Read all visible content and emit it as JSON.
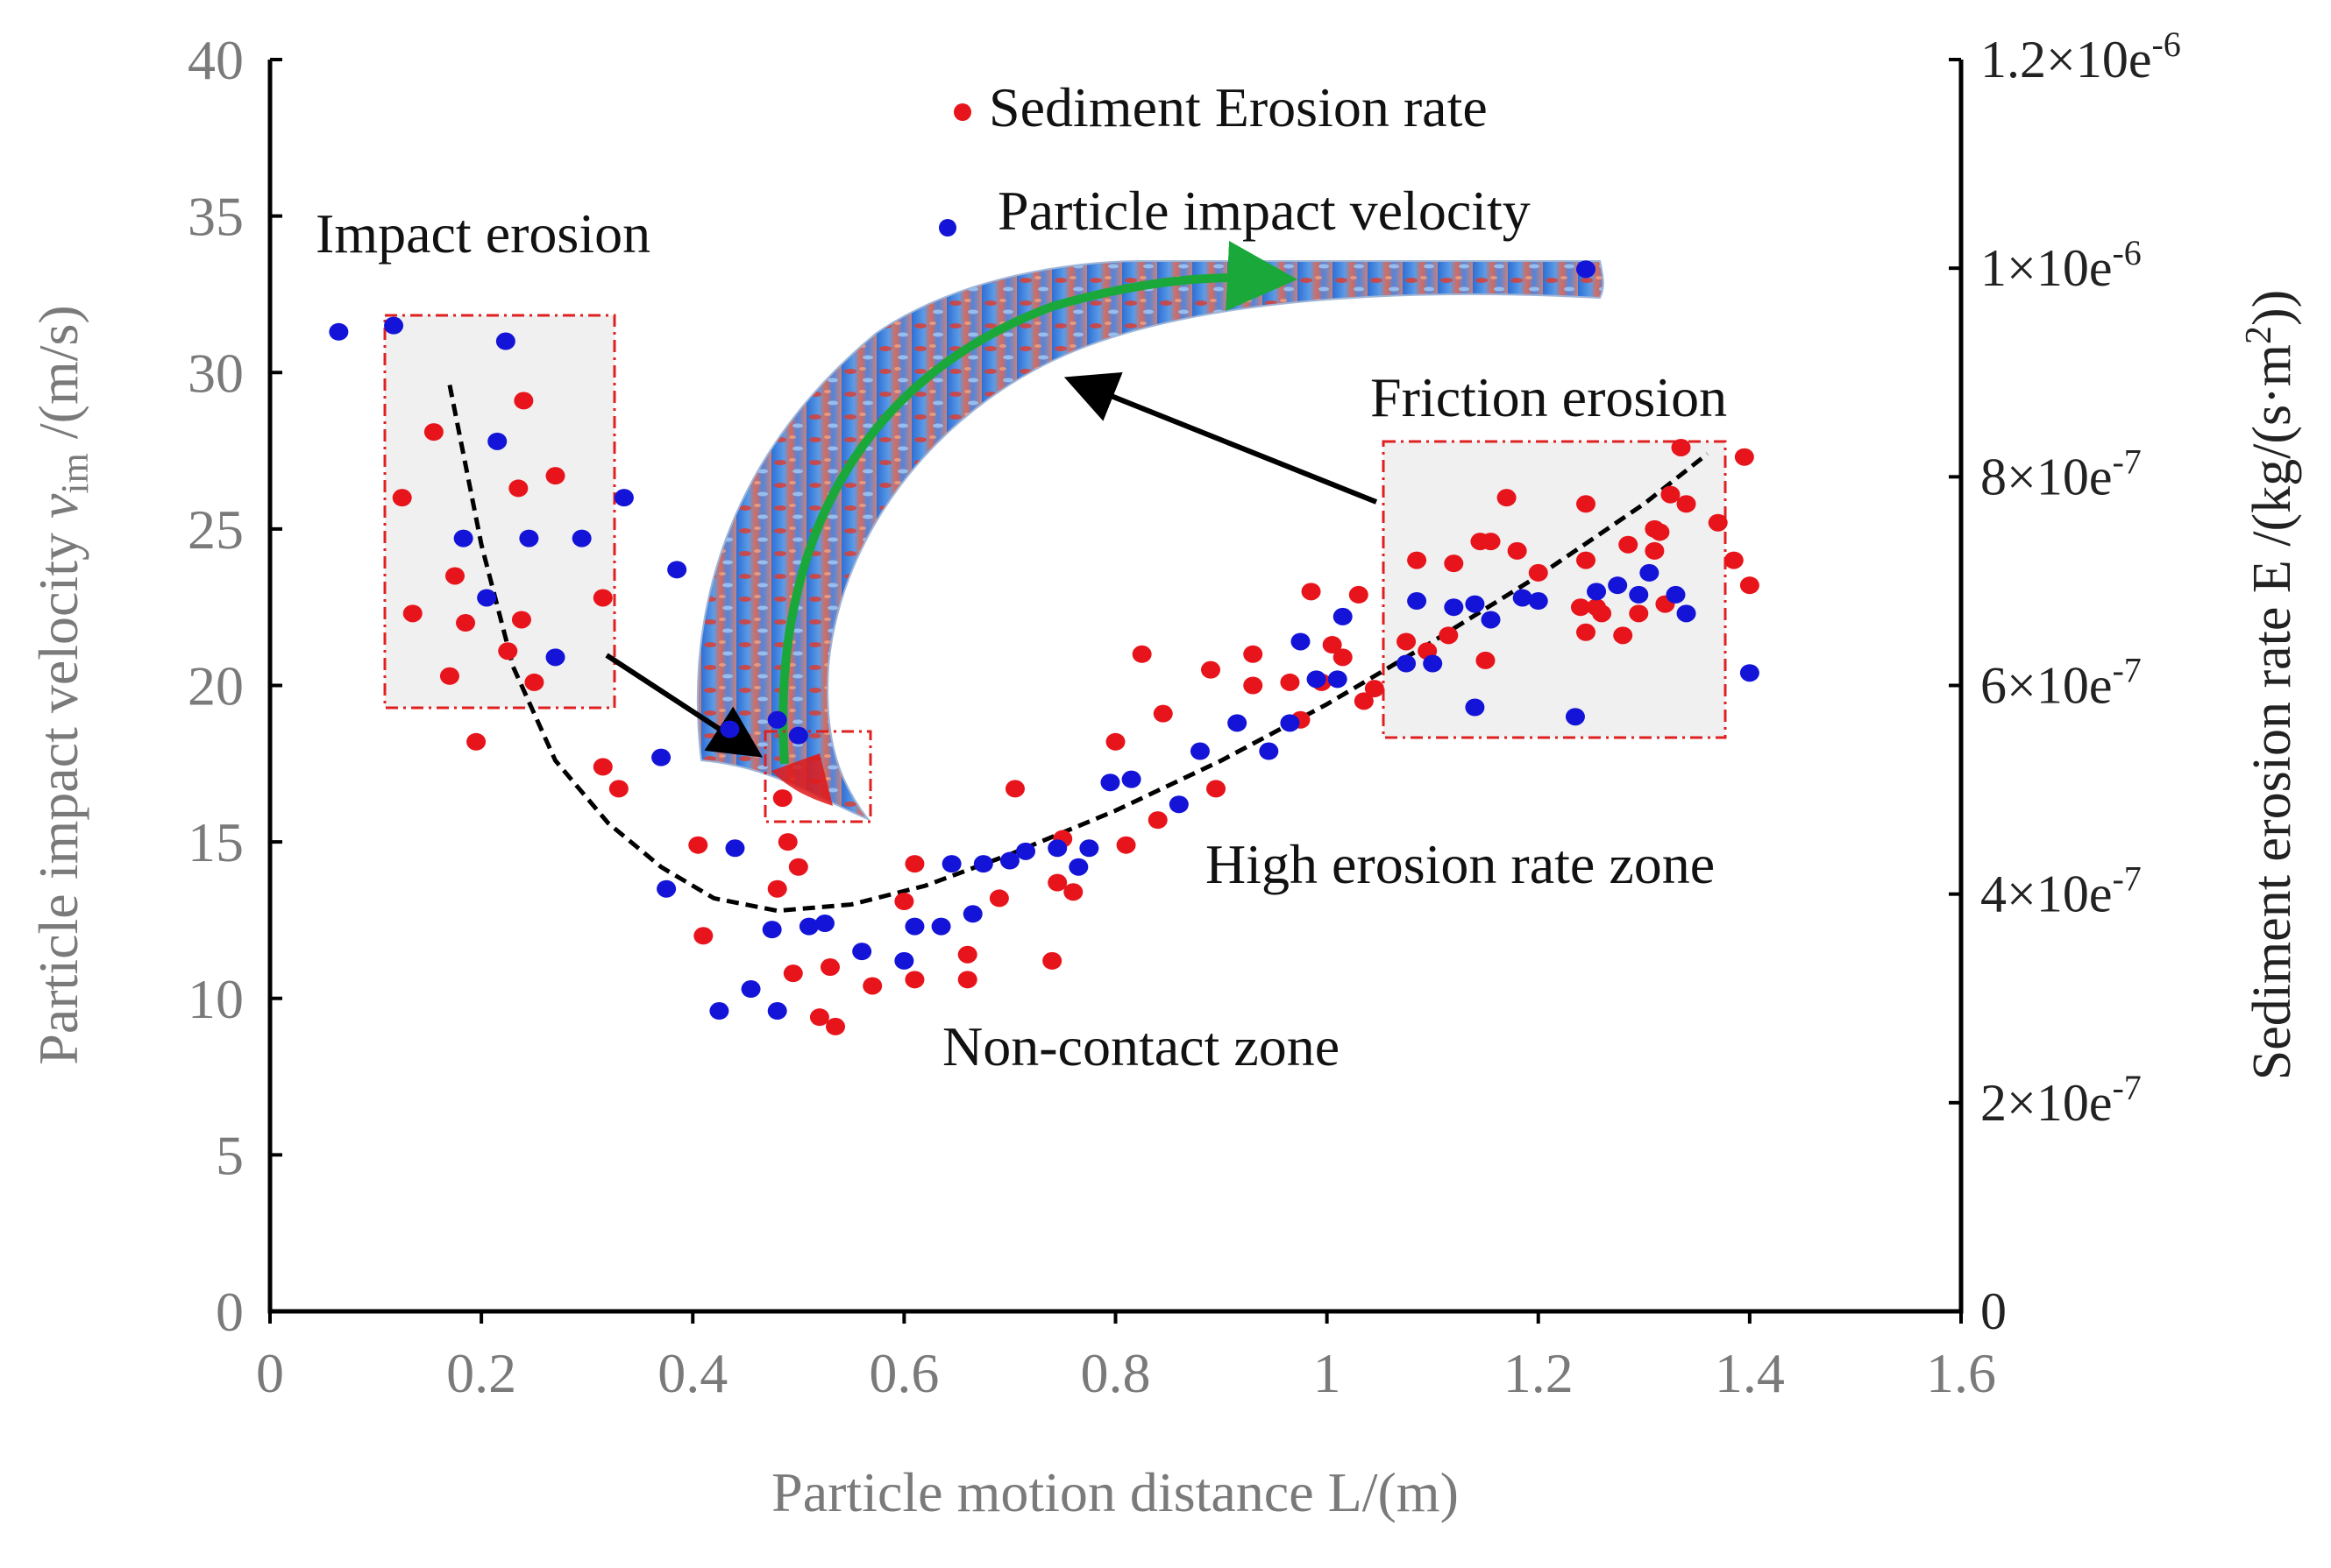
{
  "chart_data": {
    "type": "scatter",
    "xlabel": "Particle motion distance L/(m)",
    "ylabel": {
      "prefix": "Particle impact velocity ",
      "var": "v",
      "sub": "im",
      "suffix": " /(m/s)"
    },
    "y2label": {
      "prefix": "Sediment erosion rate E /(kg/(s·m",
      "sup": "2",
      "suffix": "))"
    },
    "xlim": [
      0,
      1.6
    ],
    "ylim": [
      0,
      40
    ],
    "y2lim": [
      0,
      1.2e-06
    ],
    "xticks": [
      "0",
      "0.2",
      "0.4",
      "0.6",
      "0.8",
      "1",
      "1.2",
      "1.4",
      "1.6"
    ],
    "yticks": [
      "0",
      "5",
      "10",
      "15",
      "20",
      "25",
      "30",
      "35",
      "40"
    ],
    "y2ticks": [
      {
        "value": 0,
        "mantissa": "0",
        "exp": ""
      },
      {
        "value": 2e-07,
        "mantissa": "2×10e",
        "exp": "-7"
      },
      {
        "value": 4e-07,
        "mantissa": "4×10e",
        "exp": "-7"
      },
      {
        "value": 6e-07,
        "mantissa": "6×10e",
        "exp": "-7"
      },
      {
        "value": 8e-07,
        "mantissa": "8×10e",
        "exp": "-7"
      },
      {
        "value": 1e-06,
        "mantissa": "1×10e",
        "exp": "-6"
      },
      {
        "value": 1.2e-06,
        "mantissa": "1.2×10e",
        "exp": "-6"
      }
    ],
    "legend_placement": "top-center",
    "series": [
      {
        "name": "Sediment Erosion rate",
        "color": "#e8141b",
        "axis": "right (plotted in left-axis scale)",
        "points": [
          [
            0.125,
            26.0
          ],
          [
            0.135,
            22.3
          ],
          [
            0.155,
            28.1
          ],
          [
            0.17,
            20.3
          ],
          [
            0.175,
            23.5
          ],
          [
            0.185,
            22.0
          ],
          [
            0.195,
            18.2
          ],
          [
            0.225,
            21.1
          ],
          [
            0.235,
            26.3
          ],
          [
            0.238,
            22.1
          ],
          [
            0.24,
            29.1
          ],
          [
            0.25,
            20.1
          ],
          [
            0.27,
            26.7
          ],
          [
            0.315,
            22.8
          ],
          [
            0.315,
            17.4
          ],
          [
            0.33,
            16.7
          ],
          [
            0.405,
            14.9
          ],
          [
            0.41,
            12.0
          ],
          [
            0.48,
            13.5
          ],
          [
            0.485,
            16.4
          ],
          [
            0.49,
            15.0
          ],
          [
            0.495,
            10.8
          ],
          [
            0.5,
            14.2
          ],
          [
            0.52,
            9.4
          ],
          [
            0.53,
            11.0
          ],
          [
            0.535,
            9.1
          ],
          [
            0.57,
            10.4
          ],
          [
            0.6,
            13.1
          ],
          [
            0.61,
            10.6
          ],
          [
            0.61,
            14.3
          ],
          [
            0.66,
            11.4
          ],
          [
            0.66,
            10.6
          ],
          [
            0.69,
            13.2
          ],
          [
            0.705,
            16.7
          ],
          [
            0.74,
            11.2
          ],
          [
            0.745,
            13.7
          ],
          [
            0.75,
            15.1
          ],
          [
            0.76,
            13.4
          ],
          [
            0.8,
            18.2
          ],
          [
            0.81,
            14.9
          ],
          [
            0.825,
            21.0
          ],
          [
            0.84,
            15.7
          ],
          [
            0.845,
            19.1
          ],
          [
            0.89,
            20.5
          ],
          [
            0.895,
            16.7
          ],
          [
            0.93,
            21.0
          ],
          [
            0.93,
            20.0
          ],
          [
            0.965,
            20.1
          ],
          [
            0.975,
            18.9
          ],
          [
            0.985,
            23.0
          ],
          [
            0.995,
            20.1
          ],
          [
            1.005,
            21.3
          ],
          [
            1.015,
            20.9
          ],
          [
            1.03,
            22.9
          ],
          [
            1.035,
            19.5
          ],
          [
            1.045,
            19.9
          ],
          [
            1.075,
            21.4
          ],
          [
            1.085,
            24.0
          ],
          [
            1.095,
            21.1
          ],
          [
            1.115,
            21.6
          ],
          [
            1.12,
            23.9
          ],
          [
            1.145,
            24.6
          ],
          [
            1.15,
            20.8
          ],
          [
            1.155,
            24.6
          ],
          [
            1.17,
            26.0
          ],
          [
            1.18,
            24.3
          ],
          [
            1.2,
            23.6
          ],
          [
            1.24,
            22.5
          ],
          [
            1.245,
            24.0
          ],
          [
            1.245,
            25.8
          ],
          [
            1.245,
            21.7
          ],
          [
            1.255,
            22.5
          ],
          [
            1.28,
            21.6
          ],
          [
            1.285,
            24.5
          ],
          [
            1.295,
            22.3
          ],
          [
            1.31,
            25.0
          ],
          [
            1.31,
            24.3
          ],
          [
            1.315,
            24.9
          ],
          [
            1.32,
            22.6
          ],
          [
            1.325,
            26.1
          ],
          [
            1.335,
            27.6
          ],
          [
            1.34,
            25.8
          ],
          [
            1.37,
            25.2
          ],
          [
            1.385,
            24.0
          ],
          [
            1.395,
            27.3
          ],
          [
            1.4,
            23.2
          ],
          [
            1.26,
            22.3
          ]
        ]
      },
      {
        "name": "Particle impact velocity",
        "color": "#1414d8",
        "axis": "left",
        "points": [
          [
            0.065,
            31.3
          ],
          [
            0.117,
            31.5
          ],
          [
            0.183,
            24.7
          ],
          [
            0.205,
            22.8
          ],
          [
            0.215,
            27.8
          ],
          [
            0.223,
            31.0
          ],
          [
            0.245,
            24.7
          ],
          [
            0.27,
            20.9
          ],
          [
            0.295,
            24.7
          ],
          [
            0.335,
            26.0
          ],
          [
            0.37,
            17.7
          ],
          [
            0.375,
            13.5
          ],
          [
            0.385,
            23.7
          ],
          [
            0.425,
            9.6
          ],
          [
            0.435,
            18.6
          ],
          [
            0.44,
            14.8
          ],
          [
            0.455,
            10.3
          ],
          [
            0.475,
            12.2
          ],
          [
            0.48,
            18.9
          ],
          [
            0.48,
            9.6
          ],
          [
            0.5,
            18.4
          ],
          [
            0.51,
            12.3
          ],
          [
            0.525,
            12.4
          ],
          [
            0.56,
            11.5
          ],
          [
            0.6,
            11.2
          ],
          [
            0.61,
            12.3
          ],
          [
            0.635,
            12.3
          ],
          [
            0.645,
            14.3
          ],
          [
            0.665,
            12.7
          ],
          [
            0.675,
            14.3
          ],
          [
            0.7,
            14.4
          ],
          [
            0.715,
            14.7
          ],
          [
            0.745,
            14.8
          ],
          [
            0.765,
            14.2
          ],
          [
            0.775,
            14.8
          ],
          [
            0.795,
            16.9
          ],
          [
            0.815,
            17.0
          ],
          [
            0.86,
            16.2
          ],
          [
            0.88,
            17.9
          ],
          [
            0.915,
            18.8
          ],
          [
            0.945,
            17.9
          ],
          [
            0.965,
            18.8
          ],
          [
            0.975,
            21.4
          ],
          [
            0.99,
            20.2
          ],
          [
            1.01,
            20.2
          ],
          [
            1.015,
            22.2
          ],
          [
            1.075,
            20.7
          ],
          [
            1.085,
            22.7
          ],
          [
            1.1,
            20.7
          ],
          [
            1.12,
            22.5
          ],
          [
            1.14,
            22.6
          ],
          [
            1.14,
            19.3
          ],
          [
            1.155,
            22.1
          ],
          [
            1.185,
            22.8
          ],
          [
            1.2,
            22.7
          ],
          [
            1.235,
            19.0
          ],
          [
            1.255,
            23.0
          ],
          [
            1.275,
            23.2
          ],
          [
            1.295,
            22.9
          ],
          [
            1.305,
            23.6
          ],
          [
            1.33,
            22.9
          ],
          [
            1.34,
            22.3
          ],
          [
            1.4,
            20.4
          ],
          [
            1.245,
            33.3
          ]
        ]
      }
    ],
    "trend_line": {
      "style": "black dashed",
      "points": [
        [
          0.17,
          29.6
        ],
        [
          0.2,
          24.5
        ],
        [
          0.23,
          20.6
        ],
        [
          0.27,
          17.6
        ],
        [
          0.32,
          15.6
        ],
        [
          0.37,
          14.2
        ],
        [
          0.42,
          13.2
        ],
        [
          0.48,
          12.8
        ],
        [
          0.55,
          13.0
        ],
        [
          0.62,
          13.6
        ],
        [
          0.7,
          14.6
        ],
        [
          0.8,
          16.0
        ],
        [
          0.9,
          17.6
        ],
        [
          1.0,
          19.4
        ],
        [
          1.1,
          21.4
        ],
        [
          1.2,
          23.5
        ],
        [
          1.3,
          25.8
        ],
        [
          1.36,
          27.4
        ]
      ]
    },
    "annotations": {
      "impact_erosion": "Impact erosion",
      "friction_erosion": "Friction erosion",
      "high_erosion": "High erosion rate zone",
      "non_contact": "Non-contact zone"
    }
  }
}
